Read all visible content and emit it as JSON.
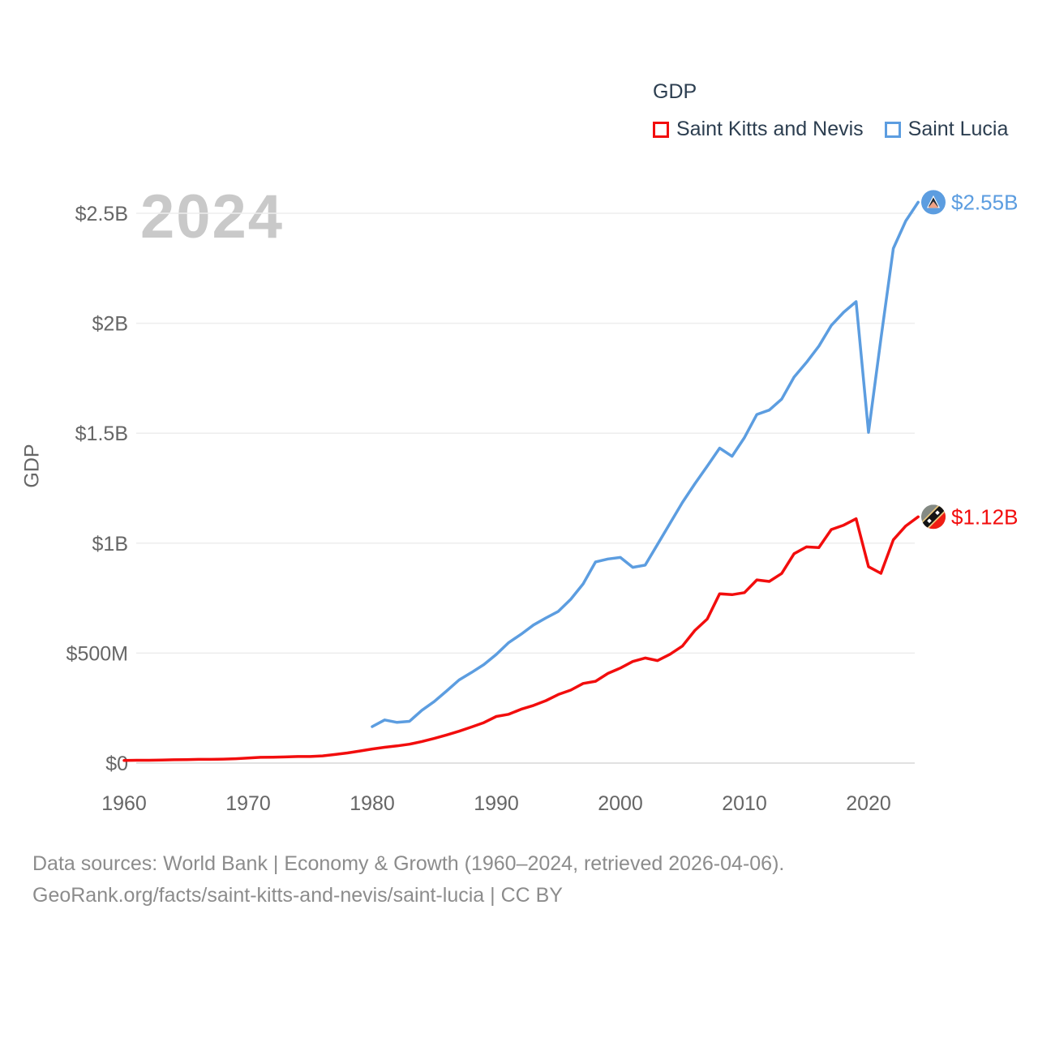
{
  "watermark": "2024",
  "legend": {
    "title": "GDP",
    "items": [
      {
        "label": "Saint Kitts and Nevis",
        "color": "#f20d0d"
      },
      {
        "label": "Saint Lucia",
        "color": "#5c9de0"
      }
    ]
  },
  "footer": {
    "line1": "Data sources: World Bank | Economy & Growth (1960–2024, retrieved 2026-04-06).",
    "line2": "GeoRank.org/facts/saint-kitts-and-nevis/saint-lucia | CC BY"
  },
  "chart_data": {
    "type": "line",
    "title": "GDP",
    "xlabel": "",
    "ylabel": "GDP",
    "xlim": [
      1960,
      2024
    ],
    "ylim_usd_millions": [
      0,
      2500
    ],
    "grid": true,
    "legend_position": "top-right",
    "x_ticks": [
      1960,
      1970,
      1980,
      1990,
      2000,
      2010,
      2020
    ],
    "y_ticks": [
      {
        "value_musd": 0,
        "label": "$0"
      },
      {
        "value_musd": 500,
        "label": "$500M"
      },
      {
        "value_musd": 1000,
        "label": "$1B"
      },
      {
        "value_musd": 1500,
        "label": "$1.5B"
      },
      {
        "value_musd": 2000,
        "label": "$2B"
      },
      {
        "value_musd": 2500,
        "label": "$2.5B"
      }
    ],
    "series": [
      {
        "id": "saint-kitts-and-nevis",
        "name": "Saint Kitts and Nevis",
        "color": "#f20d0d",
        "end_label": "$1.12B",
        "years": [
          1960,
          1961,
          1962,
          1963,
          1964,
          1965,
          1966,
          1967,
          1968,
          1969,
          1970,
          1971,
          1972,
          1973,
          1974,
          1975,
          1976,
          1977,
          1978,
          1979,
          1980,
          1981,
          1982,
          1983,
          1984,
          1985,
          1986,
          1987,
          1988,
          1989,
          1990,
          1991,
          1992,
          1993,
          1994,
          1995,
          1996,
          1997,
          1998,
          1999,
          2000,
          2001,
          2002,
          2003,
          2004,
          2005,
          2006,
          2007,
          2008,
          2009,
          2010,
          2011,
          2012,
          2013,
          2014,
          2015,
          2016,
          2017,
          2018,
          2019,
          2020,
          2021,
          2022,
          2023,
          2024
        ],
        "values_musd": [
          12,
          13,
          13,
          14,
          15,
          16,
          17,
          17,
          18,
          20,
          23,
          26,
          27,
          28,
          30,
          30,
          33,
          39,
          46,
          55,
          64,
          72,
          78,
          86,
          98,
          112,
          128,
          145,
          164,
          184,
          212,
          222,
          245,
          262,
          284,
          312,
          332,
          362,
          372,
          408,
          432,
          462,
          478,
          466,
          495,
          532,
          603,
          655,
          770,
          766,
          775,
          833,
          826,
          862,
          952,
          983,
          980,
          1062,
          1082,
          1111,
          893,
          863,
          1015,
          1078,
          1120
        ]
      },
      {
        "id": "saint-lucia",
        "name": "Saint Lucia",
        "color": "#5c9de0",
        "end_label": "$2.55B",
        "years": [
          1980,
          1981,
          1982,
          1983,
          1984,
          1985,
          1986,
          1987,
          1988,
          1989,
          1990,
          1991,
          1992,
          1993,
          1994,
          1995,
          1996,
          1997,
          1998,
          1999,
          2000,
          2001,
          2002,
          2003,
          2004,
          2005,
          2006,
          2007,
          2008,
          2009,
          2010,
          2011,
          2012,
          2013,
          2014,
          2015,
          2016,
          2017,
          2018,
          2019,
          2020,
          2021,
          2022,
          2023,
          2024
        ],
        "values_musd": [
          166,
          196,
          185,
          190,
          240,
          280,
          328,
          378,
          412,
          448,
          494,
          548,
          586,
          628,
          660,
          690,
          745,
          815,
          915,
          928,
          935,
          890,
          900,
          995,
          1090,
          1185,
          1270,
          1350,
          1432,
          1395,
          1480,
          1585,
          1605,
          1655,
          1755,
          1822,
          1896,
          1990,
          2050,
          2098,
          1504,
          1930,
          2340,
          2465,
          2550
        ]
      }
    ]
  }
}
